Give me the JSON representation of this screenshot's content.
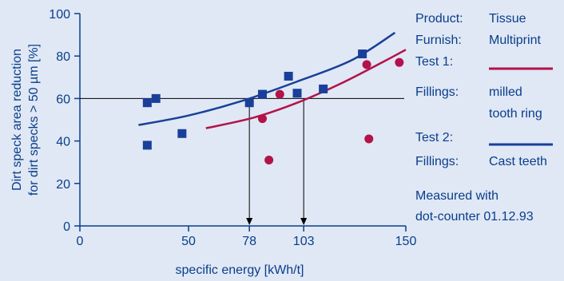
{
  "chart_data": {
    "type": "scatter",
    "title": "",
    "xlabel": "specific energy [kWh/t]",
    "ylabel_line1": "Dirt speck area reduction",
    "ylabel_line2": "for dirt specks > 50 µm [%]",
    "xlim": [
      0,
      150
    ],
    "ylim": [
      0,
      100
    ],
    "xticks": [
      0,
      50,
      78,
      103,
      150
    ],
    "yticks": [
      0,
      20,
      40,
      60,
      80,
      100
    ],
    "grid": false,
    "reference_line": {
      "y": 60,
      "x_drops": [
        78,
        103
      ]
    },
    "series": [
      {
        "name": "Test 2",
        "marker": "square",
        "color": "#1a3f9a",
        "points": [
          [
            31,
            58
          ],
          [
            31,
            38
          ],
          [
            35,
            60
          ],
          [
            47,
            43.5
          ],
          [
            78,
            58
          ],
          [
            84,
            62
          ],
          [
            96,
            70.5
          ],
          [
            100,
            62.5
          ],
          [
            112,
            64.5
          ],
          [
            130,
            81
          ]
        ],
        "fit": [
          [
            27,
            47.5
          ],
          [
            50,
            52
          ],
          [
            75,
            59
          ],
          [
            100,
            68
          ],
          [
            125,
            78
          ],
          [
            145,
            91
          ]
        ]
      },
      {
        "name": "Test 1",
        "marker": "circle",
        "color": "#b3124a",
        "points": [
          [
            84,
            50.5
          ],
          [
            87,
            31
          ],
          [
            92,
            62
          ],
          [
            132,
            76
          ],
          [
            133,
            41
          ],
          [
            147,
            77
          ]
        ],
        "fit": [
          [
            58,
            46
          ],
          [
            80,
            51
          ],
          [
            100,
            58
          ],
          [
            120,
            67
          ],
          [
            140,
            77.5
          ],
          [
            150,
            83
          ]
        ]
      }
    ]
  },
  "legend": {
    "rows": [
      {
        "key": "Product:",
        "value": "Tissue"
      },
      {
        "key": "Furnish:",
        "value": "Multiprint"
      },
      {
        "key": "Test 1:",
        "value": ""
      },
      {
        "key": "Fillings:",
        "value": "milled"
      },
      {
        "key": "",
        "value": "tooth ring"
      },
      {
        "key": "Test 2:",
        "value": ""
      },
      {
        "key": "Fillings:",
        "value": "Cast teeth"
      }
    ],
    "note_line1": "Measured with",
    "note_line2": "dot-counter 01.12.93"
  },
  "colors": {
    "background": "#dfe8f4",
    "text": "#0b3d8c",
    "axis": "#0b3d8c",
    "test1": "#b3124a",
    "test2": "#1a3f9a"
  }
}
